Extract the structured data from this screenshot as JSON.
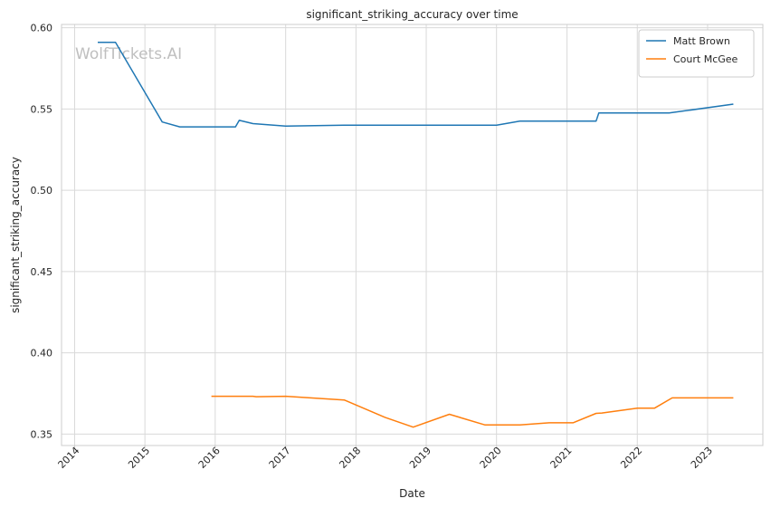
{
  "chart_data": {
    "type": "line",
    "title": "significant_striking_accuracy over time",
    "xlabel": "Date",
    "ylabel": "significant_striking_accuracy",
    "watermark": "WolfTickets.AI",
    "x_ticks": [
      "2014",
      "2015",
      "2016",
      "2017",
      "2018",
      "2019",
      "2020",
      "2021",
      "2022",
      "2023"
    ],
    "y_ticks": [
      "0.35",
      "0.40",
      "0.45",
      "0.50",
      "0.55",
      "0.60"
    ],
    "xlim": [
      "2013-10-25",
      "2023-10-15"
    ],
    "ylim": [
      0.343,
      0.602
    ],
    "grid": true,
    "legend_position": "top-right",
    "series": [
      {
        "name": "Matt Brown",
        "color": "#1f77b4",
        "x": [
          "2014-05-01",
          "2014-08-01",
          "2015-04-01",
          "2015-07-01",
          "2016-04-15",
          "2016-05-05",
          "2016-07-15",
          "2017-01-01",
          "2017-11-01",
          "2018-06-01",
          "2019-10-15",
          "2020-01-01",
          "2020-05-01",
          "2021-06-01",
          "2021-06-15",
          "2022-06-15",
          "2023-05-15"
        ],
        "values": [
          0.591,
          0.591,
          0.542,
          0.539,
          0.539,
          0.543,
          0.541,
          0.5395,
          0.54,
          0.54,
          0.54,
          0.54,
          0.5425,
          0.5425,
          0.5475,
          0.5475,
          0.553
        ]
      },
      {
        "name": "Court McGee",
        "color": "#ff7f0e",
        "x": [
          "2015-12-12",
          "2016-07-15",
          "2016-08-01",
          "2017-01-01",
          "2017-11-01",
          "2018-06-01",
          "2018-10-25",
          "2019-05-01",
          "2019-11-01",
          "2020-05-01",
          "2020-10-01",
          "2021-02-01",
          "2021-06-01",
          "2021-07-01",
          "2022-01-01",
          "2022-04-01",
          "2022-07-01",
          "2023-05-15"
        ],
        "values": [
          0.3733,
          0.3733,
          0.373,
          0.3733,
          0.371,
          0.3603,
          0.3543,
          0.3622,
          0.3557,
          0.3557,
          0.357,
          0.357,
          0.3628,
          0.363,
          0.366,
          0.366,
          0.3723,
          0.3723
        ]
      }
    ]
  }
}
